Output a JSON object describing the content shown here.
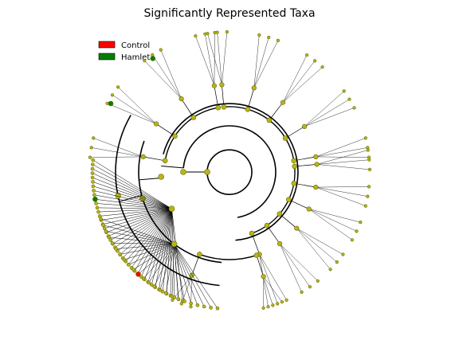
{
  "figure": {
    "title": "Significantly Represented Taxa"
  },
  "legend": {
    "items": [
      {
        "label": "Control",
        "color": "#ff0000"
      },
      {
        "label": "Hamlet",
        "color": "#008000"
      }
    ]
  },
  "colors": {
    "node_fill": "#b5b51a",
    "node_stroke": "#6a6a00",
    "branch": "#000000",
    "control": "#ff0000",
    "hamlet": "#008000"
  },
  "diagram": {
    "type": "circular-cladogram",
    "notes": "Radial cladogram of taxa; highlighted clades colored by group."
  }
}
